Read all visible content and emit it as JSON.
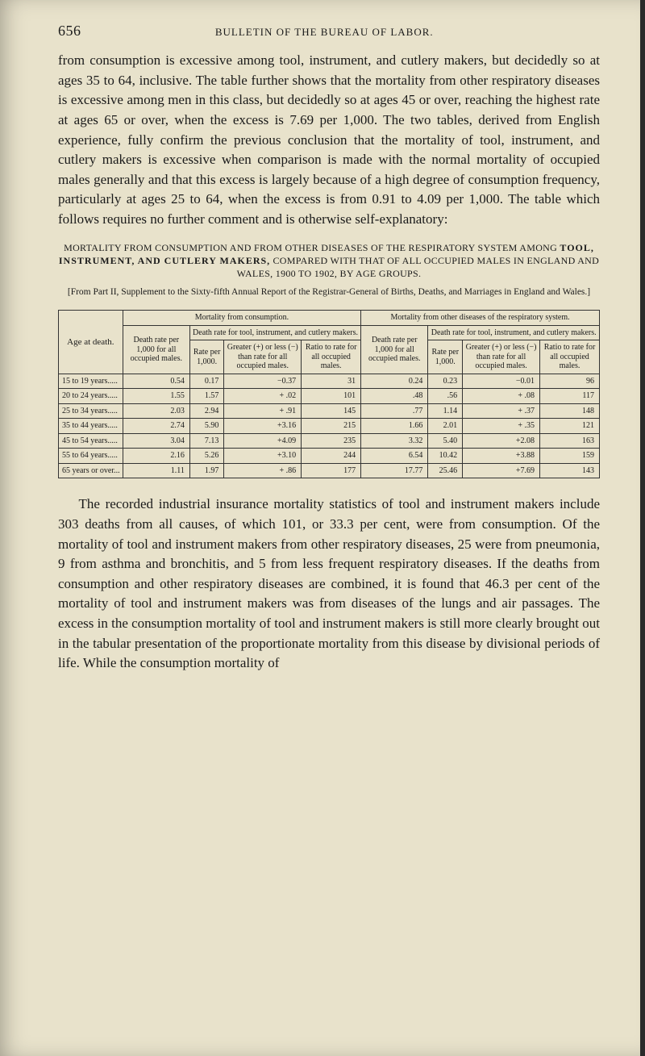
{
  "page": {
    "number": "656",
    "running_head": "BULLETIN OF THE BUREAU OF LABOR."
  },
  "paragraphs": {
    "p1": "from consumption is excessive among tool, instrument, and cutlery makers, but decidedly so at ages 35 to 64, inclusive. The table further shows that the mortality from other respiratory diseases is excessive among men in this class, but decidedly so at ages 45 or over, reaching the highest rate at ages 65 or over, when the excess is 7.69 per 1,000. The two tables, derived from English experience, fully confirm the previous conclusion that the mortality of tool, instrument, and cutlery makers is excessive when comparison is made with the normal mortality of occupied males generally and that this excess is largely because of a high degree of consumption frequency, particularly at ages 25 to 64, when the excess is from 0.91 to 4.09 per 1,000. The table which follows requires no further comment and is otherwise self-explanatory:",
    "p2": "The recorded industrial insurance mortality statistics of tool and instrument makers include 303 deaths from all causes, of which 101, or 33.3 per cent, were from consumption. Of the mortality of tool and instrument makers from other respiratory diseases, 25 were from pneumonia, 9 from asthma and bronchitis, and 5 from less frequent respiratory diseases. If the deaths from consumption and other respiratory diseases are combined, it is found that 46.3 per cent of the mortality of tool and instrument makers was from diseases of the lungs and air passages. The excess in the consumption mortality of tool and instrument makers is still more clearly brought out in the tabular presentation of the proportionate mortality from this disease by divisional periods of life. While the consumption mortality of"
  },
  "table_caption": {
    "line1_pre": "MORTALITY FROM CONSUMPTION AND FROM OTHER DISEASES OF THE RESPIRATORY SYSTEM AMONG ",
    "line1_emph": "TOOL, INSTRUMENT, AND CUTLERY MAKERS,",
    "line1_post": " COMPARED WITH THAT OF ALL OCCUPIED MALES IN ENGLAND AND WALES, 1900 TO 1902, BY AGE GROUPS.",
    "source": "[From Part II, Supplement to the Sixty-fifth Annual Report of the Registrar-General of Births, Deaths, and Marriages in England and Wales.]"
  },
  "table": {
    "type": "table",
    "columns": {
      "age": "Age at death.",
      "group_a": "Mortality from consumption.",
      "group_b": "Mortality from other diseases of the respiratory system.",
      "sub_a": "Death rate for tool, instrument, and cutlery makers.",
      "sub_b": "Death rate for tool, instrument, and cutlery makers.",
      "death_rate_label": "Death rate per 1,000 for all occupied males.",
      "rate_per_label": "Rate per 1,000.",
      "greater_less_label": "Greater (+) or less (−) than rate for all occupied males.",
      "ratio_label": "Ratio to rate for all occupied males."
    },
    "rows": [
      {
        "age": "15 to 19 years.....",
        "a1": "0.54",
        "a2": "0.17",
        "a3": "−0.37",
        "a4": "31",
        "b1": "0.24",
        "b2": "0.23",
        "b3": "−0.01",
        "b4": "96"
      },
      {
        "age": "20 to 24 years.....",
        "a1": "1.55",
        "a2": "1.57",
        "a3": "+ .02",
        "a4": "101",
        "b1": ".48",
        "b2": ".56",
        "b3": "+ .08",
        "b4": "117"
      },
      {
        "age": "25 to 34 years.....",
        "a1": "2.03",
        "a2": "2.94",
        "a3": "+ .91",
        "a4": "145",
        "b1": ".77",
        "b2": "1.14",
        "b3": "+ .37",
        "b4": "148"
      },
      {
        "age": "35 to 44 years.....",
        "a1": "2.74",
        "a2": "5.90",
        "a3": "+3.16",
        "a4": "215",
        "b1": "1.66",
        "b2": "2.01",
        "b3": "+ .35",
        "b4": "121"
      },
      {
        "age": "45 to 54 years.....",
        "a1": "3.04",
        "a2": "7.13",
        "a3": "+4.09",
        "a4": "235",
        "b1": "3.32",
        "b2": "5.40",
        "b3": "+2.08",
        "b4": "163"
      },
      {
        "age": "55 to 64 years.....",
        "a1": "2.16",
        "a2": "5.26",
        "a3": "+3.10",
        "a4": "244",
        "b1": "6.54",
        "b2": "10.42",
        "b3": "+3.88",
        "b4": "159"
      },
      {
        "age": "65 years or over...",
        "a1": "1.11",
        "a2": "1.97",
        "a3": "+ .86",
        "a4": "177",
        "b1": "17.77",
        "b2": "25.46",
        "b3": "+7.69",
        "b4": "143"
      }
    ],
    "border_color": "#333333",
    "background_color": "#e8e2cb",
    "header_fontsize": 10,
    "body_fontsize": 10
  }
}
